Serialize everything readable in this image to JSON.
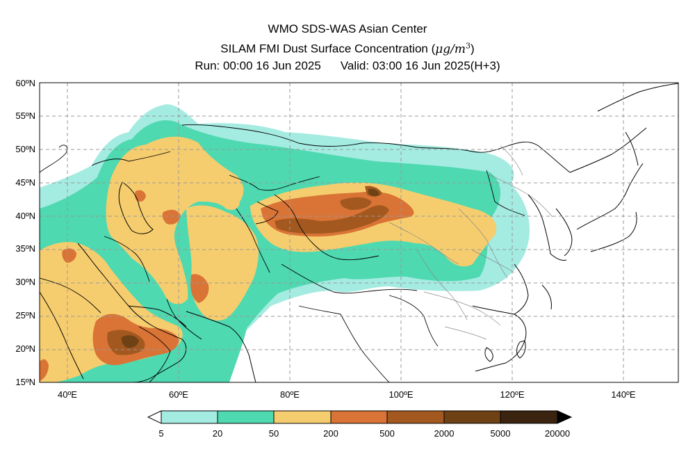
{
  "titles": {
    "line1": "WMO SDS-WAS Asian Center",
    "line2": "SILAM FMI Dust Surface Concentration (",
    "unit_mu": "μg/m",
    "unit_exp": "3",
    "unit_close": ")",
    "run": "Run: 00:00 16 Jun 2025",
    "valid": "Valid: 03:00 16 Jun 2025(H+3)"
  },
  "map": {
    "lon_range": [
      35,
      150
    ],
    "lat_range": [
      15,
      60
    ],
    "lat_labels": [
      "15ºN",
      "20ºN",
      "25ºN",
      "30ºN",
      "35ºN",
      "40ºN",
      "45ºN",
      "50ºN",
      "55ºN",
      "60ºN"
    ],
    "lon_labels": [
      {
        "lon": 40,
        "text": "40ºE"
      },
      {
        "lon": 60,
        "text": "60ºE"
      },
      {
        "lon": 80,
        "text": "80ºE"
      },
      {
        "lon": 100,
        "text": "100ºE"
      },
      {
        "lon": 120,
        "text": "120ºE"
      },
      {
        "lon": 140,
        "text": "140ºE"
      }
    ]
  },
  "colorbar": {
    "labels": [
      "5",
      "20",
      "50",
      "200",
      "500",
      "2000",
      "5000",
      "20000"
    ],
    "colors": [
      "#a4ebe1",
      "#4ed9b0",
      "#f6cd6e",
      "#d97436",
      "#a2581e",
      "#6f4216",
      "#3a2410"
    ]
  }
}
